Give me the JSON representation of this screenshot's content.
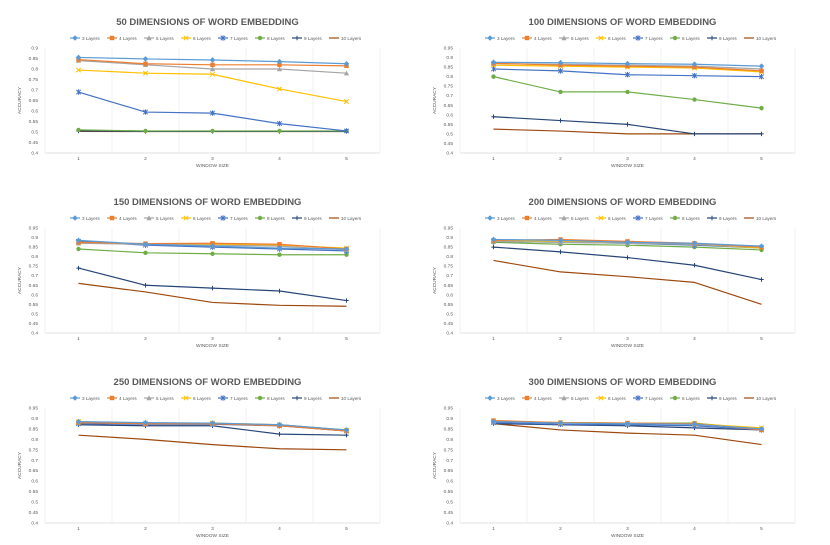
{
  "chart_data": [
    {
      "type": "line",
      "title": "50 DIMENSIONS OF WORD EMBEDDING",
      "xlabel": "WINDOW SIZE",
      "ylabel": "ACCURACY",
      "x": [
        1,
        2,
        3,
        4,
        5
      ],
      "ylim": [
        0.4,
        0.9
      ],
      "yticks": [
        "0.4",
        "0.45",
        "0.5",
        "0.55",
        "0.6",
        "0.65",
        "0.7",
        "0.75",
        "0.8",
        "0.85",
        "0.9"
      ],
      "series": [
        {
          "name": "3 Layers",
          "values": [
            0.855,
            0.848,
            0.843,
            0.835,
            0.825
          ]
        },
        {
          "name": "4 Layers",
          "values": [
            0.845,
            0.825,
            0.82,
            0.82,
            0.815
          ]
        },
        {
          "name": "5 Layers",
          "values": [
            0.84,
            0.82,
            0.8,
            0.8,
            0.78
          ]
        },
        {
          "name": "6 Layers",
          "values": [
            0.795,
            0.78,
            0.775,
            0.705,
            0.645
          ]
        },
        {
          "name": "7 Layers",
          "values": [
            0.69,
            0.595,
            0.59,
            0.54,
            0.505
          ]
        },
        {
          "name": "8 Layers",
          "values": [
            0.51,
            0.505,
            0.505,
            0.505,
            0.505
          ]
        },
        {
          "name": "9 Layers",
          "values": [
            0.505,
            0.503,
            0.503,
            0.503,
            0.503
          ]
        },
        {
          "name": "10 Layers",
          "values": [
            0.503,
            0.502,
            0.502,
            0.502,
            0.502
          ]
        }
      ]
    },
    {
      "type": "line",
      "title": "100 DIMENSIONS OF WORD EMBEDDING",
      "xlabel": "WINDOW SIZE",
      "ylabel": "ACCURACY",
      "x": [
        1,
        2,
        3,
        4,
        5
      ],
      "ylim": [
        0.4,
        0.95
      ],
      "yticks": [
        "0.4",
        "0.45",
        "0.5",
        "0.55",
        "0.6",
        "0.65",
        "0.7",
        "0.75",
        "0.8",
        "0.85",
        "0.9",
        "0.95"
      ],
      "series": [
        {
          "name": "3 Layers",
          "values": [
            0.875,
            0.873,
            0.868,
            0.865,
            0.855
          ]
        },
        {
          "name": "4 Layers",
          "values": [
            0.87,
            0.86,
            0.855,
            0.85,
            0.83
          ]
        },
        {
          "name": "5 Layers",
          "values": [
            0.868,
            0.865,
            0.86,
            0.855,
            0.84
          ]
        },
        {
          "name": "6 Layers",
          "values": [
            0.86,
            0.855,
            0.85,
            0.845,
            0.825
          ]
        },
        {
          "name": "7 Layers",
          "values": [
            0.84,
            0.83,
            0.81,
            0.805,
            0.8
          ]
        },
        {
          "name": "8 Layers",
          "values": [
            0.8,
            0.72,
            0.72,
            0.68,
            0.635
          ]
        },
        {
          "name": "9 Layers",
          "values": [
            0.59,
            0.57,
            0.55,
            0.5,
            0.5
          ]
        },
        {
          "name": "10 Layers",
          "values": [
            0.525,
            0.515,
            0.5,
            0.5,
            0.5
          ]
        }
      ]
    },
    {
      "type": "line",
      "title": "150 DIMENSIONS OF WORD EMBEDDING",
      "xlabel": "WINDOW SIZE",
      "ylabel": "ACCURACY",
      "x": [
        1,
        2,
        3,
        4,
        5
      ],
      "ylim": [
        0.4,
        0.95
      ],
      "yticks": [
        "0.4",
        "0.45",
        "0.5",
        "0.55",
        "0.6",
        "0.65",
        "0.7",
        "0.75",
        "0.8",
        "0.85",
        "0.9",
        "0.95"
      ],
      "series": [
        {
          "name": "3 Layers",
          "values": [
            0.885,
            0.865,
            0.855,
            0.845,
            0.84
          ]
        },
        {
          "name": "4 Layers",
          "values": [
            0.875,
            0.868,
            0.87,
            0.865,
            0.84
          ]
        },
        {
          "name": "5 Layers",
          "values": [
            0.87,
            0.865,
            0.86,
            0.855,
            0.835
          ]
        },
        {
          "name": "6 Layers",
          "values": [
            0.875,
            0.865,
            0.865,
            0.86,
            0.845
          ]
        },
        {
          "name": "7 Layers",
          "values": [
            0.88,
            0.86,
            0.85,
            0.84,
            0.83
          ]
        },
        {
          "name": "8 Layers",
          "values": [
            0.84,
            0.82,
            0.815,
            0.81,
            0.81
          ]
        },
        {
          "name": "9 Layers",
          "values": [
            0.74,
            0.65,
            0.635,
            0.62,
            0.57
          ]
        },
        {
          "name": "10 Layers",
          "values": [
            0.66,
            0.615,
            0.56,
            0.545,
            0.54
          ]
        }
      ]
    },
    {
      "type": "line",
      "title": "200 DIMENSIONS OF WORD EMBEDDING",
      "xlabel": "WINDOW SIZE",
      "ylabel": "ACCURACY",
      "x": [
        1,
        2,
        3,
        4,
        5
      ],
      "ylim": [
        0.4,
        0.95
      ],
      "yticks": [
        "0.4",
        "0.45",
        "0.5",
        "0.55",
        "0.6",
        "0.65",
        "0.7",
        "0.75",
        "0.8",
        "0.85",
        "0.9",
        "0.95"
      ],
      "series": [
        {
          "name": "3 Layers",
          "values": [
            0.89,
            0.885,
            0.875,
            0.87,
            0.855
          ]
        },
        {
          "name": "4 Layers",
          "values": [
            0.885,
            0.89,
            0.88,
            0.87,
            0.85
          ]
        },
        {
          "name": "5 Layers",
          "values": [
            0.88,
            0.875,
            0.87,
            0.865,
            0.85
          ]
        },
        {
          "name": "6 Layers",
          "values": [
            0.885,
            0.88,
            0.875,
            0.865,
            0.845
          ]
        },
        {
          "name": "7 Layers",
          "values": [
            0.88,
            0.875,
            0.87,
            0.86,
            0.845
          ]
        },
        {
          "name": "8 Layers",
          "values": [
            0.875,
            0.865,
            0.86,
            0.85,
            0.835
          ]
        },
        {
          "name": "9 Layers",
          "values": [
            0.85,
            0.825,
            0.795,
            0.755,
            0.68
          ]
        },
        {
          "name": "10 Layers",
          "values": [
            0.78,
            0.72,
            0.695,
            0.665,
            0.55
          ]
        }
      ]
    },
    {
      "type": "line",
      "title": "250 DIMENSIONS OF WORD EMBEDDING",
      "xlabel": "WINDOW SIZE",
      "ylabel": "ACCURACY",
      "x": [
        1,
        2,
        3,
        4,
        5
      ],
      "ylim": [
        0.4,
        0.95
      ],
      "yticks": [
        "0.4",
        "0.45",
        "0.5",
        "0.55",
        "0.6",
        "0.65",
        "0.7",
        "0.75",
        "0.8",
        "0.85",
        "0.9",
        "0.95"
      ],
      "series": [
        {
          "name": "3 Layers",
          "values": [
            0.885,
            0.88,
            0.878,
            0.87,
            0.845
          ]
        },
        {
          "name": "4 Layers",
          "values": [
            0.88,
            0.875,
            0.875,
            0.865,
            0.84
          ]
        },
        {
          "name": "5 Layers",
          "values": [
            0.88,
            0.875,
            0.875,
            0.87,
            0.84
          ]
        },
        {
          "name": "6 Layers",
          "values": [
            0.885,
            0.878,
            0.878,
            0.87,
            0.843
          ]
        },
        {
          "name": "7 Layers",
          "values": [
            0.875,
            0.872,
            0.872,
            0.865,
            0.84
          ]
        },
        {
          "name": "8 Layers",
          "values": [
            0.88,
            0.875,
            0.875,
            0.87,
            0.845
          ]
        },
        {
          "name": "9 Layers",
          "values": [
            0.87,
            0.865,
            0.865,
            0.825,
            0.82
          ]
        },
        {
          "name": "10 Layers",
          "values": [
            0.82,
            0.8,
            0.775,
            0.755,
            0.75
          ]
        }
      ]
    },
    {
      "type": "line",
      "title": "300 DIMENSIONS OF WORD EMBEDDING",
      "xlabel": "WINDOW SIZE",
      "ylabel": "ACCURACY",
      "x": [
        1,
        2,
        3,
        4,
        5
      ],
      "ylim": [
        0.4,
        0.95
      ],
      "yticks": [
        "0.4",
        "0.45",
        "0.5",
        "0.55",
        "0.6",
        "0.65",
        "0.7",
        "0.75",
        "0.8",
        "0.85",
        "0.9",
        "0.95"
      ],
      "series": [
        {
          "name": "3 Layers",
          "values": [
            0.885,
            0.878,
            0.875,
            0.872,
            0.85
          ]
        },
        {
          "name": "4 Layers",
          "values": [
            0.89,
            0.88,
            0.878,
            0.875,
            0.845
          ]
        },
        {
          "name": "5 Layers",
          "values": [
            0.885,
            0.878,
            0.875,
            0.872,
            0.85
          ]
        },
        {
          "name": "6 Layers",
          "values": [
            0.888,
            0.88,
            0.878,
            0.875,
            0.855
          ]
        },
        {
          "name": "7 Layers",
          "values": [
            0.88,
            0.872,
            0.87,
            0.865,
            0.845
          ]
        },
        {
          "name": "8 Layers",
          "values": [
            0.885,
            0.88,
            0.878,
            0.878,
            0.848
          ]
        },
        {
          "name": "9 Layers",
          "values": [
            0.875,
            0.87,
            0.865,
            0.855,
            0.845
          ]
        },
        {
          "name": "10 Layers",
          "values": [
            0.875,
            0.845,
            0.83,
            0.82,
            0.775
          ]
        }
      ]
    }
  ],
  "series_colors": [
    "#5b9bd5",
    "#ed7d31",
    "#a5a5a5",
    "#ffc000",
    "#4472c4",
    "#70ad47",
    "#264478",
    "#9e480e"
  ],
  "series_markers": [
    "diamond",
    "square",
    "triangle",
    "x",
    "star",
    "circle",
    "plus",
    "none"
  ]
}
